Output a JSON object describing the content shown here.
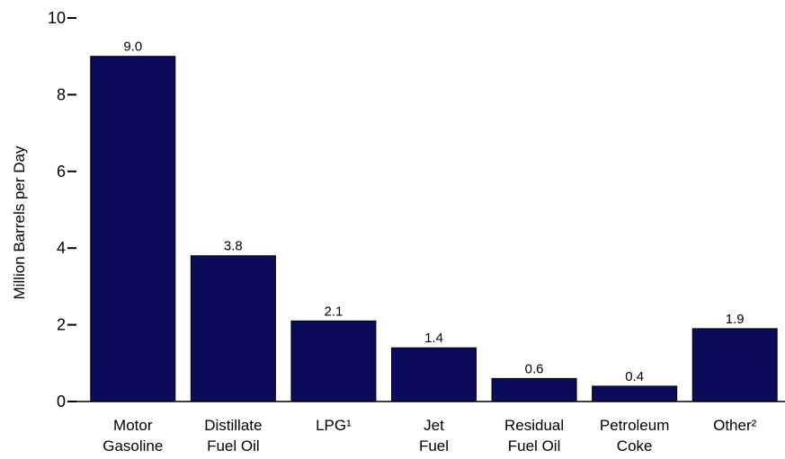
{
  "chart_data": {
    "type": "bar",
    "categories": [
      [
        "Motor",
        "Gasoline"
      ],
      [
        "Distillate",
        "Fuel Oil"
      ],
      [
        "LPG¹"
      ],
      [
        "Jet",
        "Fuel"
      ],
      [
        "Residual",
        "Fuel Oil"
      ],
      [
        "Petroleum",
        "Coke"
      ],
      [
        "Other²"
      ]
    ],
    "values": [
      9.0,
      3.8,
      2.1,
      1.4,
      0.6,
      0.4,
      1.9
    ],
    "value_labels": [
      "9.0",
      "3.8",
      "2.1",
      "1.4",
      "0.6",
      "0.4",
      "1.9"
    ],
    "title": "",
    "xlabel": "",
    "ylabel": "Million Barrels per Day",
    "ylim": [
      0,
      10
    ],
    "yticks": [
      0,
      2,
      4,
      6,
      8,
      10
    ],
    "grid": false,
    "legend": "none",
    "bar_color": "#0b0b5a",
    "bar_border_color": "#000000"
  }
}
